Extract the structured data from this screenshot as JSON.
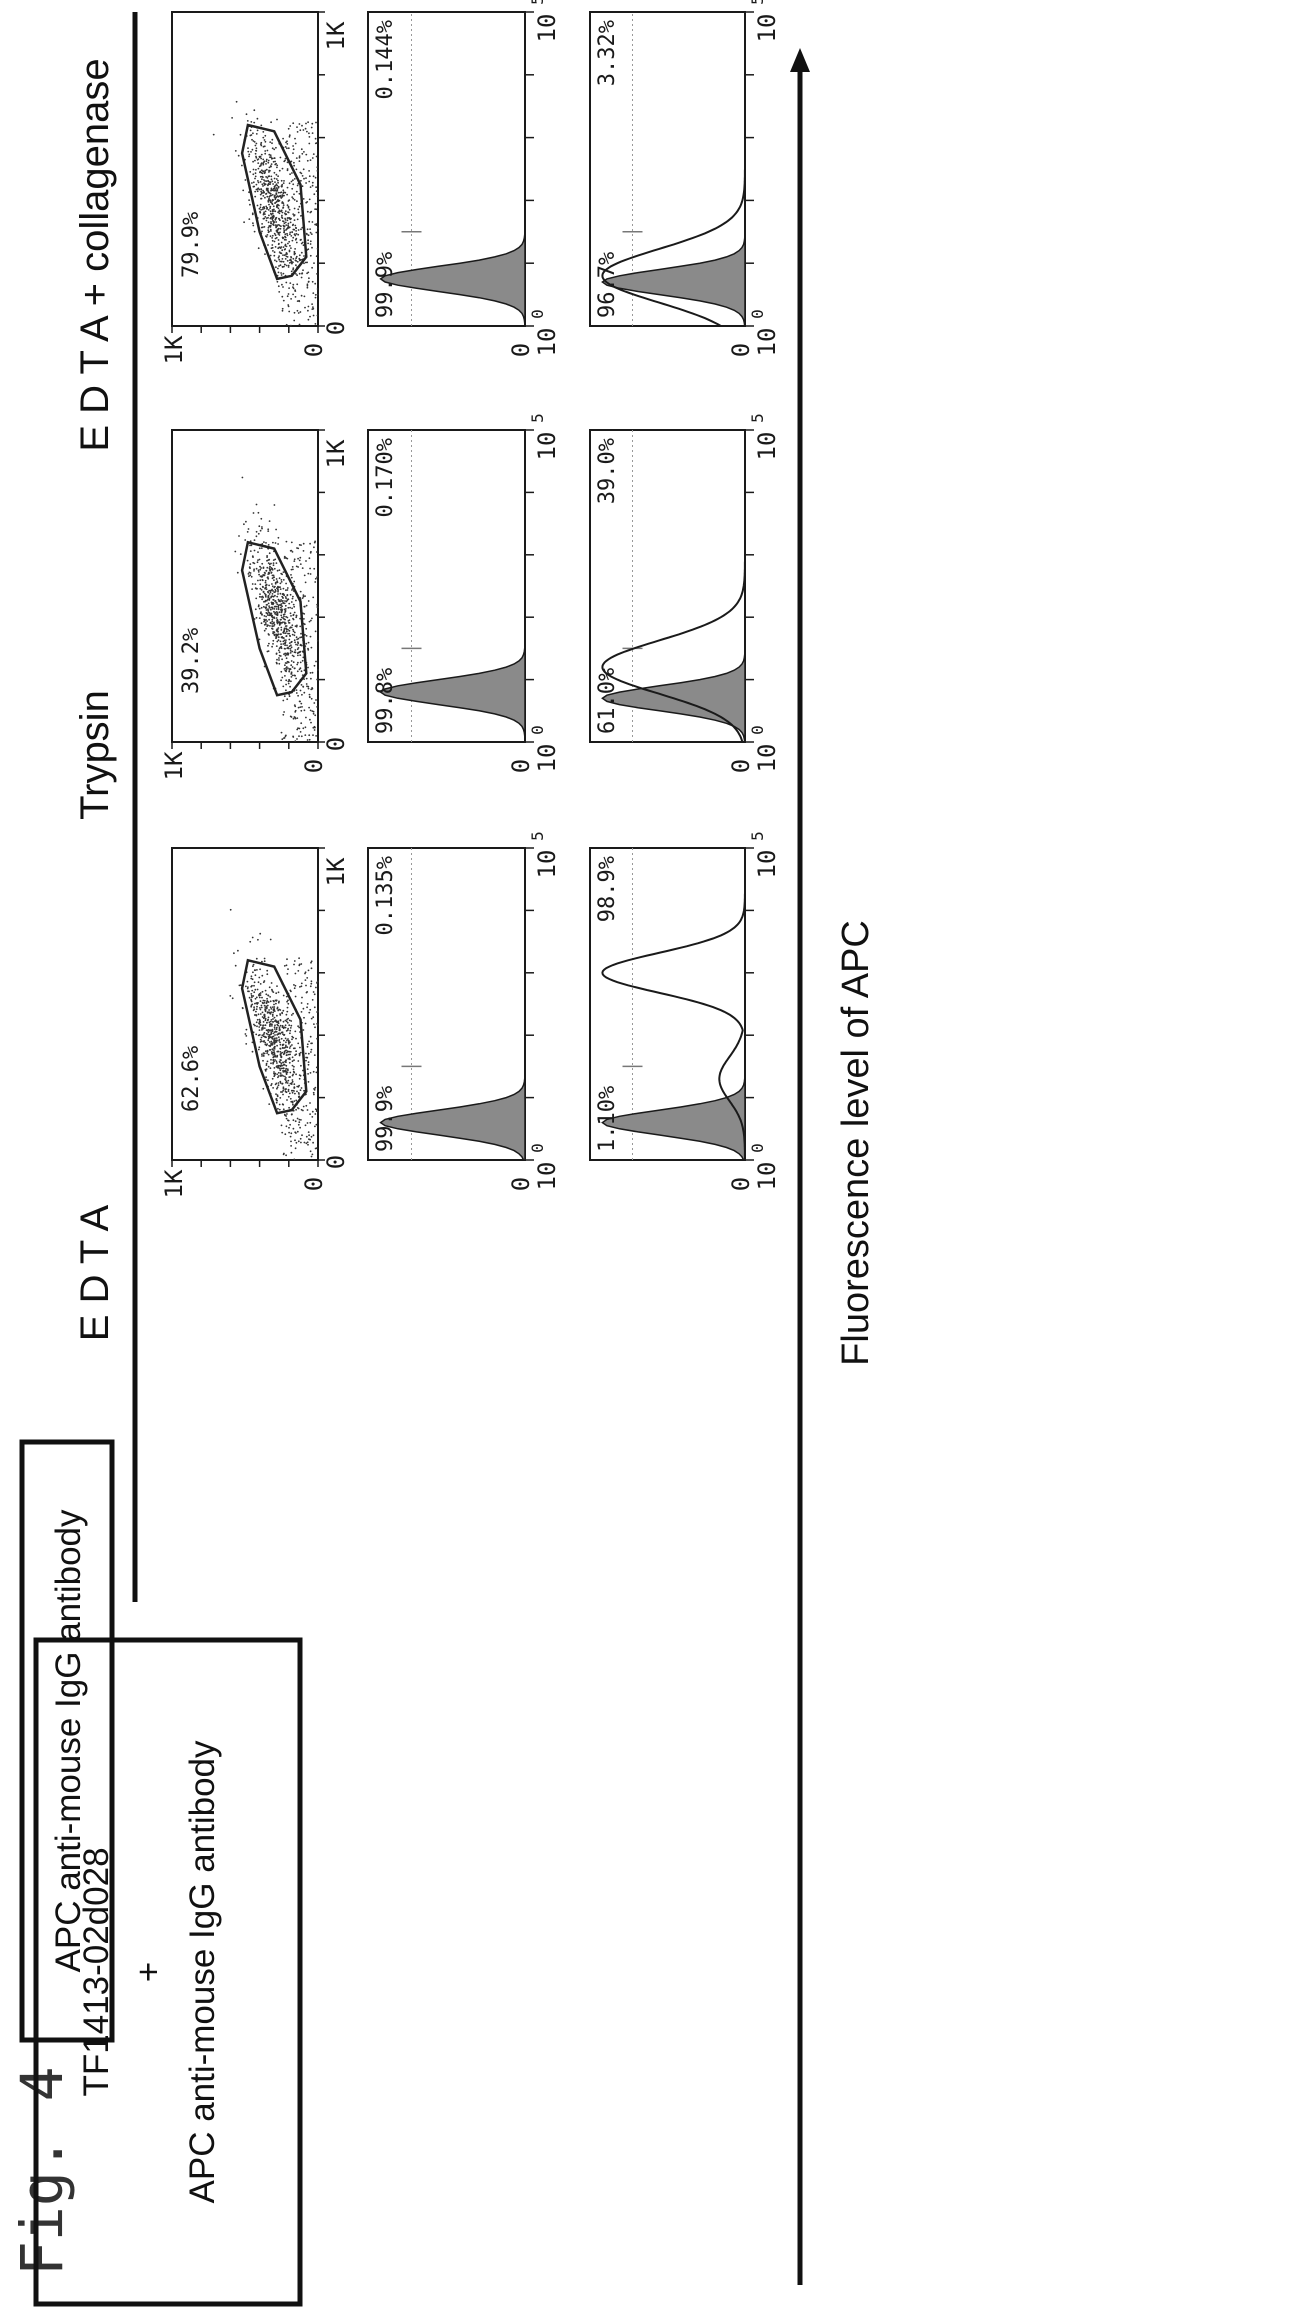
{
  "figure_label": "Fig. 4",
  "conditions": [
    "E D T A",
    "Trypsin",
    "E D T A + collagenase"
  ],
  "row_labels": {
    "row2": "APC anti-mouse IgG antibody",
    "row3_line1": "TF1413-02d028",
    "row3_line2": "+",
    "row3_line3": "APC anti-mouse IgG antibody"
  },
  "axis_label": "Fluorescence level of APC",
  "scatter_ticks": {
    "zero": "0",
    "max": "1K"
  },
  "hist_ticks": {
    "low": "0",
    "base": "10",
    "exp_low": "0",
    "exp_high": "5"
  },
  "colors": {
    "ink": "#1a1a1a",
    "fill": "#8a8a8a",
    "gate": "#222222"
  },
  "chart_data": [
    {
      "type": "scatter",
      "condition": "E D T A",
      "row": 1,
      "xlim": [
        0,
        1000
      ],
      "ylim": [
        0,
        1000
      ],
      "gate_percent": "62.6%"
    },
    {
      "type": "scatter",
      "condition": "Trypsin",
      "row": 1,
      "xlim": [
        0,
        1000
      ],
      "ylim": [
        0,
        1000
      ],
      "gate_percent": "39.2%"
    },
    {
      "type": "scatter",
      "condition": "E D T A + collagenase",
      "row": 1,
      "xlim": [
        0,
        1000
      ],
      "ylim": [
        0,
        1000
      ],
      "gate_percent": "79.9%"
    },
    {
      "type": "area",
      "condition": "E D T A",
      "row": 2,
      "x_scale": "log",
      "xlim": [
        1,
        100000
      ],
      "negative_percent": "99.9%",
      "positive_percent": "0.135%",
      "filled_peak_log10": 0.6,
      "open_peak_log10": null
    },
    {
      "type": "area",
      "condition": "Trypsin",
      "row": 2,
      "x_scale": "log",
      "xlim": [
        1,
        100000
      ],
      "negative_percent": "99.8%",
      "positive_percent": "0.170%",
      "filled_peak_log10": 0.8,
      "open_peak_log10": null
    },
    {
      "type": "area",
      "condition": "E D T A + collagenase",
      "row": 2,
      "x_scale": "log",
      "xlim": [
        1,
        100000
      ],
      "negative_percent": "99.9%",
      "positive_percent": "0.144%",
      "filled_peak_log10": 0.75,
      "open_peak_log10": null
    },
    {
      "type": "area",
      "condition": "E D T A",
      "row": 3,
      "x_scale": "log",
      "xlim": [
        1,
        100000
      ],
      "negative_percent": "1.10%",
      "positive_percent": "98.9%",
      "filled_peak_log10": 0.6,
      "open_peak_log10": 3.0
    },
    {
      "type": "area",
      "condition": "Trypsin",
      "row": 3,
      "x_scale": "log",
      "xlim": [
        1,
        100000
      ],
      "negative_percent": "61.0%",
      "positive_percent": "39.0%",
      "filled_peak_log10": 0.7,
      "open_peak_log10": 1.2
    },
    {
      "type": "area",
      "condition": "E D T A + collagenase",
      "row": 3,
      "x_scale": "log",
      "xlim": [
        1,
        100000
      ],
      "negative_percent": "96.7%",
      "positive_percent": "3.32%",
      "filled_peak_log10": 0.7,
      "open_peak_log10": 0.8
    }
  ]
}
